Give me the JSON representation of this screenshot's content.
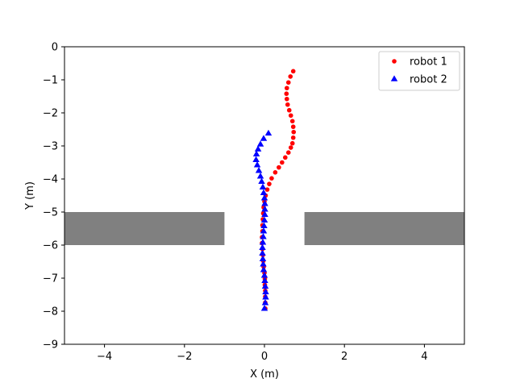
{
  "chart_data": {
    "type": "scatter",
    "title": "",
    "xlabel": "X (m)",
    "ylabel": "Y (m)",
    "xlim": [
      -5,
      5
    ],
    "ylim": [
      -9,
      0
    ],
    "grid": false,
    "legend_position": "top-right",
    "x_ticks": [
      -4,
      -2,
      0,
      2,
      4
    ],
    "x_tick_labels": [
      "−4",
      "−2",
      "0",
      "2",
      "4"
    ],
    "y_ticks": [
      0,
      -1,
      -2,
      -3,
      -4,
      -5,
      -6,
      -7,
      -8,
      -9
    ],
    "y_tick_labels": [
      "0",
      "−1",
      "−2",
      "−3",
      "−4",
      "−5",
      "−6",
      "−7",
      "−8",
      "−9"
    ],
    "obstacles": [
      {
        "name": "left-wall",
        "x_range": [
          -5,
          -1
        ],
        "y_range": [
          -6,
          -5
        ],
        "color": "#808080"
      },
      {
        "name": "right-wall",
        "x_range": [
          1,
          5
        ],
        "y_range": [
          -6,
          -5
        ],
        "color": "#808080"
      }
    ],
    "series": [
      {
        "name": "robot 1",
        "marker": "circle",
        "color": "#ff0000",
        "points": [
          [
            0.72,
            -0.74
          ],
          [
            0.65,
            -0.9
          ],
          [
            0.6,
            -1.08
          ],
          [
            0.56,
            -1.25
          ],
          [
            0.55,
            -1.42
          ],
          [
            0.56,
            -1.58
          ],
          [
            0.58,
            -1.75
          ],
          [
            0.62,
            -1.92
          ],
          [
            0.66,
            -2.08
          ],
          [
            0.7,
            -2.25
          ],
          [
            0.72,
            -2.42
          ],
          [
            0.73,
            -2.58
          ],
          [
            0.72,
            -2.75
          ],
          [
            0.7,
            -2.92
          ],
          [
            0.66,
            -3.05
          ],
          [
            0.6,
            -3.2
          ],
          [
            0.52,
            -3.35
          ],
          [
            0.44,
            -3.5
          ],
          [
            0.36,
            -3.65
          ],
          [
            0.27,
            -3.8
          ],
          [
            0.18,
            -3.98
          ],
          [
            0.12,
            -4.15
          ],
          [
            0.07,
            -4.32
          ],
          [
            0.03,
            -4.5
          ],
          [
            0.0,
            -4.68
          ],
          [
            -0.02,
            -4.86
          ],
          [
            -0.03,
            -5.04
          ],
          [
            -0.04,
            -5.22
          ],
          [
            -0.05,
            -5.4
          ],
          [
            -0.05,
            -5.58
          ],
          [
            -0.06,
            -5.76
          ],
          [
            -0.06,
            -5.94
          ],
          [
            -0.05,
            -6.12
          ],
          [
            -0.04,
            -6.3
          ],
          [
            -0.03,
            -6.48
          ],
          [
            -0.02,
            -6.66
          ],
          [
            0.0,
            -6.84
          ],
          [
            0.01,
            -7.02
          ],
          [
            0.01,
            -7.2
          ],
          [
            0.02,
            -7.38
          ],
          [
            0.02,
            -7.56
          ],
          [
            0.02,
            -7.74
          ],
          [
            0.02,
            -7.92
          ]
        ]
      },
      {
        "name": "robot 2",
        "marker": "triangle",
        "color": "#0000ff",
        "points": [
          [
            0.1,
            -2.62
          ],
          [
            -0.02,
            -2.78
          ],
          [
            -0.1,
            -2.95
          ],
          [
            -0.16,
            -3.1
          ],
          [
            -0.2,
            -3.25
          ],
          [
            -0.21,
            -3.42
          ],
          [
            -0.18,
            -3.58
          ],
          [
            -0.14,
            -3.75
          ],
          [
            -0.1,
            -3.92
          ],
          [
            -0.07,
            -4.08
          ],
          [
            -0.04,
            -4.25
          ],
          [
            -0.02,
            -4.42
          ],
          [
            0.0,
            -4.58
          ],
          [
            0.01,
            -4.75
          ],
          [
            0.01,
            -4.92
          ],
          [
            0.01,
            -5.08
          ],
          [
            0.0,
            -5.25
          ],
          [
            -0.01,
            -5.42
          ],
          [
            -0.02,
            -5.58
          ],
          [
            -0.03,
            -5.75
          ],
          [
            -0.04,
            -5.92
          ],
          [
            -0.05,
            -6.08
          ],
          [
            -0.05,
            -6.25
          ],
          [
            -0.04,
            -6.42
          ],
          [
            -0.03,
            -6.58
          ],
          [
            -0.02,
            -6.75
          ],
          [
            0.0,
            -6.92
          ],
          [
            0.01,
            -7.08
          ],
          [
            0.02,
            -7.25
          ],
          [
            0.03,
            -7.42
          ],
          [
            0.03,
            -7.58
          ],
          [
            0.02,
            -7.75
          ],
          [
            0.0,
            -7.92
          ]
        ]
      }
    ]
  }
}
